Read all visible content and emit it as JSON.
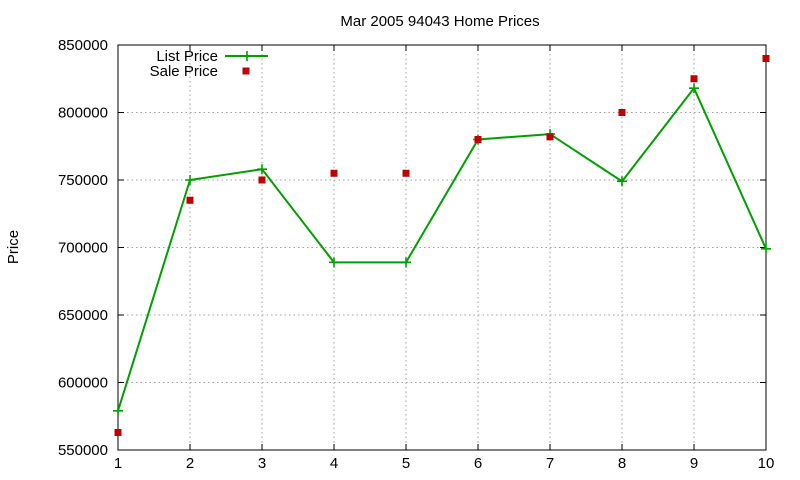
{
  "chart_data": {
    "type": "line",
    "title": "Mar 2005 94043 Home Prices",
    "xlabel": "",
    "ylabel": "Price",
    "xlim": [
      1,
      10
    ],
    "ylim": [
      550000,
      850000
    ],
    "x_ticks": [
      1,
      2,
      3,
      4,
      5,
      6,
      7,
      8,
      9,
      10
    ],
    "y_ticks": [
      550000,
      600000,
      650000,
      700000,
      750000,
      800000,
      850000
    ],
    "grid": true,
    "legend_position": "top-left",
    "series": [
      {
        "name": "List Price",
        "style": "line+cross",
        "color": "#00a000",
        "points": [
          [
            1,
            579000
          ],
          [
            2,
            750000
          ],
          [
            3,
            758000
          ],
          [
            4,
            689000
          ],
          [
            5,
            689000
          ],
          [
            6,
            780000
          ],
          [
            7,
            784000
          ],
          [
            8,
            749000
          ],
          [
            9,
            818000
          ],
          [
            10,
            699000
          ]
        ]
      },
      {
        "name": "Sale Price",
        "style": "square-points",
        "color": "#c00000",
        "points": [
          [
            1,
            563000
          ],
          [
            2,
            735000
          ],
          [
            3,
            750000
          ],
          [
            4,
            755000
          ],
          [
            5,
            755000
          ],
          [
            6,
            780000
          ],
          [
            7,
            782000
          ],
          [
            8,
            800000
          ],
          [
            9,
            825000
          ],
          [
            10,
            840000
          ]
        ]
      }
    ]
  }
}
